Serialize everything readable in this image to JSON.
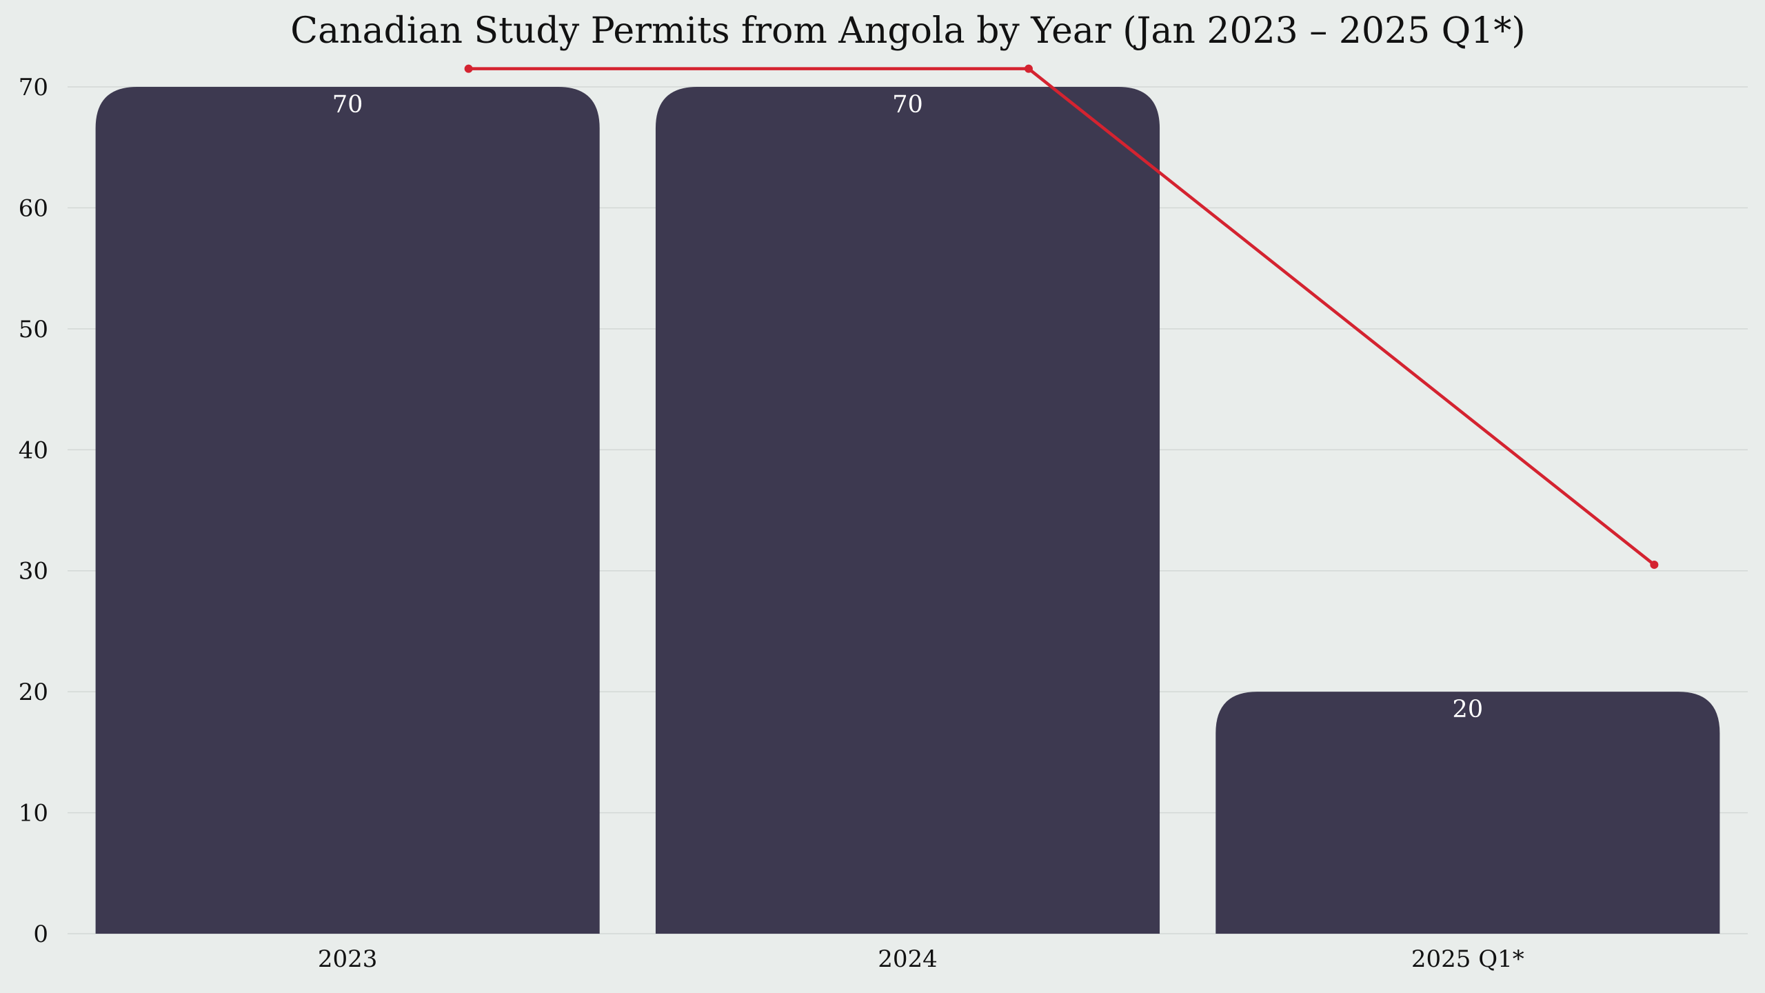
{
  "chart_data": {
    "type": "bar",
    "title": "Canadian Study Permits from Angola by Year (Jan 2023 – 2025 Q1*)",
    "xlabel": "",
    "ylabel": "",
    "categories": [
      "2023",
      "2024",
      "2025 Q1*"
    ],
    "series": [
      {
        "values": [
          70,
          70,
          20
        ]
      }
    ],
    "trend_line": {
      "values": [
        71.5,
        71.5,
        30.5
      ]
    },
    "data_labels": [
      "70",
      "70",
      "20"
    ],
    "ylim": [
      0,
      70
    ],
    "yticks": [
      "0",
      "10",
      "20",
      "30",
      "40",
      "50",
      "60",
      "70"
    ],
    "grid": true,
    "legend": "none",
    "colors": {
      "bar": "#3d3950",
      "line": "#d42330",
      "grid": "#d3d8d6",
      "background": "#e9edeb"
    }
  }
}
